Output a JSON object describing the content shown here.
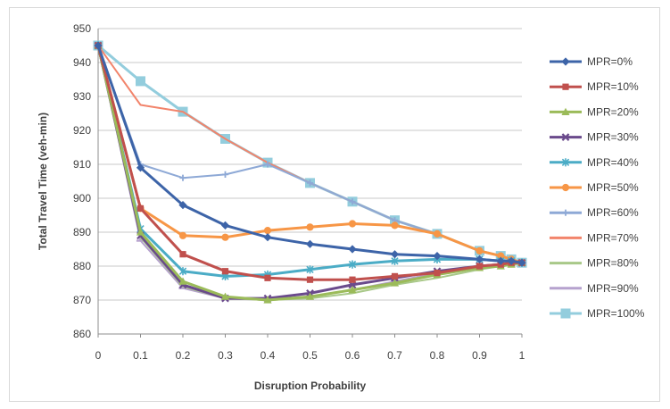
{
  "chart_data": {
    "type": "line",
    "title": "",
    "xlabel": "Disruption Probability",
    "ylabel": "Total Travel Time (veh-min)",
    "xlim": [
      0,
      1
    ],
    "ylim": [
      860,
      950
    ],
    "x_ticks": [
      0,
      0.1,
      0.2,
      0.3,
      0.4,
      0.5,
      0.6,
      0.7,
      0.8,
      0.9,
      1
    ],
    "x_tick_labels": [
      "0",
      "0.1",
      "0.2",
      "0.3",
      "0.4",
      "0.5",
      "0.6",
      "0.7",
      "0.8",
      "0.9",
      "1"
    ],
    "y_ticks": [
      860,
      870,
      880,
      890,
      900,
      910,
      920,
      930,
      940,
      950
    ],
    "y_tick_labels": [
      "860",
      "870",
      "880",
      "890",
      "900",
      "910",
      "920",
      "930",
      "940",
      "950"
    ],
    "grid": "horizontal",
    "legend_position": "right",
    "series": [
      {
        "name": "MPR=0%",
        "color": "#3d64a8",
        "marker": "diamond",
        "x": [
          0,
          0.1,
          0.2,
          0.3,
          0.4,
          0.5,
          0.6,
          0.7,
          0.8,
          0.9,
          0.95,
          0.975,
          1
        ],
        "values": [
          945,
          909,
          898,
          892,
          888.5,
          886.5,
          885,
          883.5,
          883,
          882,
          881.5,
          881.5,
          881
        ]
      },
      {
        "name": "MPR=10%",
        "color": "#c0504d",
        "marker": "square",
        "x": [
          0,
          0.1,
          0.2,
          0.3,
          0.4,
          0.5,
          0.6,
          0.7,
          0.8,
          0.9,
          0.95,
          0.975,
          1
        ],
        "values": [
          945,
          897,
          883.5,
          878.5,
          876.5,
          876,
          876,
          877,
          878,
          880,
          880.5,
          881,
          881
        ]
      },
      {
        "name": "MPR=20%",
        "color": "#9bbb59",
        "marker": "triangle",
        "x": [
          0,
          0.1,
          0.2,
          0.3,
          0.4,
          0.5,
          0.6,
          0.7,
          0.8,
          0.9,
          0.95,
          0.975,
          1
        ],
        "values": [
          945,
          890,
          875.5,
          871,
          870,
          871,
          873,
          875,
          877.5,
          879.5,
          880,
          880.5,
          881
        ]
      },
      {
        "name": "MPR=30%",
        "color": "#6a4a8c",
        "marker": "x",
        "x": [
          0,
          0.1,
          0.2,
          0.3,
          0.4,
          0.5,
          0.6,
          0.7,
          0.8,
          0.9,
          0.95,
          0.975,
          1
        ],
        "values": [
          945,
          889,
          874.5,
          870.5,
          870.5,
          872,
          874.5,
          876.5,
          878.5,
          880,
          880.5,
          881,
          881
        ]
      },
      {
        "name": "MPR=40%",
        "color": "#4bacc6",
        "marker": "star",
        "x": [
          0,
          0.1,
          0.2,
          0.3,
          0.4,
          0.5,
          0.6,
          0.7,
          0.8,
          0.9,
          0.95,
          0.975,
          1
        ],
        "values": [
          945,
          891,
          878.5,
          877,
          877.5,
          879,
          880.5,
          881.5,
          882,
          882,
          881.5,
          881.5,
          881
        ]
      },
      {
        "name": "MPR=50%",
        "color": "#f79646",
        "marker": "circle",
        "x": [
          0,
          0.1,
          0.2,
          0.3,
          0.4,
          0.5,
          0.6,
          0.7,
          0.8,
          0.9,
          0.95,
          0.975,
          1
        ],
        "values": [
          945,
          897,
          889,
          888.5,
          890.5,
          891.5,
          892.5,
          892,
          889.5,
          884.5,
          883,
          882,
          881
        ]
      },
      {
        "name": "MPR=60%",
        "color": "#8ea9d6",
        "marker": "plus",
        "x": [
          0,
          0.1,
          0.2,
          0.3,
          0.4,
          0.5,
          0.6,
          0.7,
          0.8,
          0.9,
          0.95,
          0.975,
          1
        ],
        "values": [
          945,
          910,
          906,
          907,
          910,
          904.5,
          899,
          893.5,
          889.5,
          884.5,
          883,
          882,
          881
        ]
      },
      {
        "name": "MPR=70%",
        "color": "#f2846b",
        "marker": "none",
        "x": [
          0,
          0.1,
          0.2,
          0.3,
          0.4,
          0.5,
          0.6,
          0.7,
          0.8,
          0.9,
          0.95,
          0.975,
          1
        ],
        "values": [
          945,
          927.5,
          925.5,
          917.5,
          910.5,
          904.5,
          899,
          893.5,
          889.5,
          884.5,
          883,
          882,
          881
        ]
      },
      {
        "name": "MPR=80%",
        "color": "#a8c888",
        "marker": "none",
        "x": [
          0,
          0.1,
          0.2,
          0.3,
          0.4,
          0.5,
          0.6,
          0.7,
          0.8,
          0.9,
          0.95,
          0.975,
          1
        ],
        "values": [
          945,
          888.5,
          874,
          870.5,
          870,
          870.5,
          872,
          874.5,
          876.5,
          879,
          880,
          880.5,
          881
        ]
      },
      {
        "name": "MPR=90%",
        "color": "#b6a2ce",
        "marker": "dash",
        "x": [
          0,
          0.1,
          0.2,
          0.3,
          0.4,
          0.5,
          0.6,
          0.7,
          0.8,
          0.9,
          0.95,
          0.975,
          1
        ],
        "values": [
          945,
          887.5,
          873.5,
          870.5,
          870,
          871,
          873,
          875.5,
          878,
          880,
          880.5,
          881,
          881
        ]
      },
      {
        "name": "MPR=100%",
        "color": "#93cddd",
        "marker": "bigsquare",
        "x": [
          0,
          0.1,
          0.2,
          0.3,
          0.4,
          0.5,
          0.6,
          0.7,
          0.8,
          0.9,
          0.95,
          0.975,
          1
        ],
        "values": [
          945,
          934.5,
          925.5,
          917.5,
          910.5,
          904.5,
          899,
          893.5,
          889.5,
          884.5,
          883,
          882,
          881
        ]
      }
    ]
  }
}
